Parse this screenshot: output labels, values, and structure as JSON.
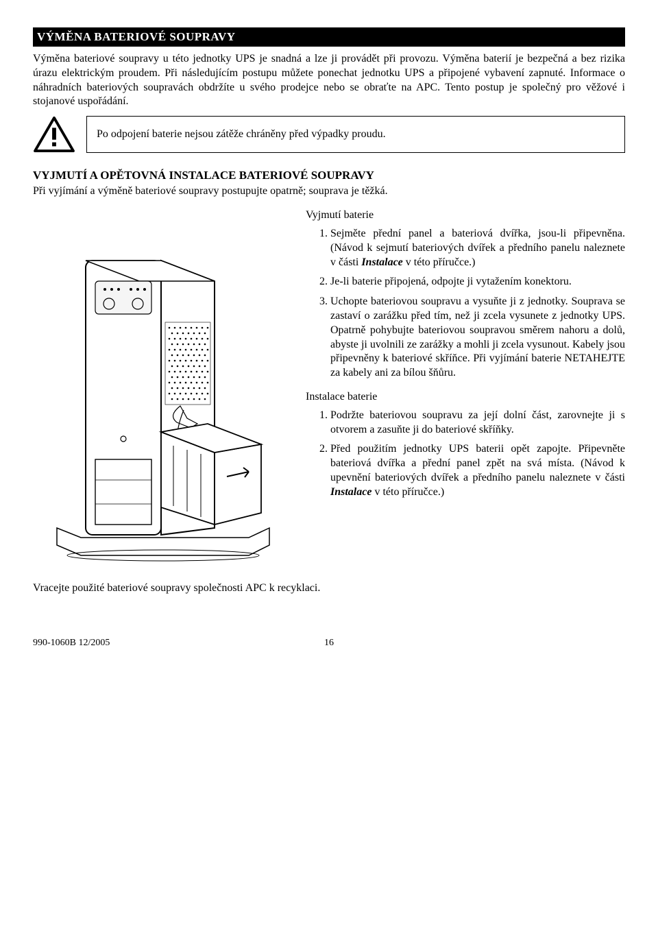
{
  "header": "VÝMĚNA BATERIOVÉ SOUPRAVY",
  "intro": "Výměna bateriové soupravy u této jednotky UPS je snadná a lze ji provádět při provozu. Výměna baterií je bezpečná a bez rizika úrazu elektrickým proudem. Při následujícím postupu můžete ponechat jednotku UPS a připojené vybavení zapnuté. Informace o náhradních bateriových soupravách obdržíte u svého prodejce nebo se obraťte na APC. Tento postup je společný pro věžové i stojanové uspořádání.",
  "warning": "Po odpojení baterie nejsou zátěže chráněny před výpadky proudu.",
  "subsection": "VYJMUTÍ A OPĚTOVNÁ INSTALACE BATERIOVÉ SOUPRAVY",
  "sub_intro": "Při vyjímání a výměně bateriové soupravy postupujte opatrně; souprava je těžká.",
  "removal_title": "Vyjmutí baterie",
  "removal": [
    "Sejměte přední panel a bateriová dvířka, jsou-li připevněna. (Návod k sejmutí bateriových dvířek a předního panelu naleznete v části <span class=\"italic\">Instalace</span> v této příručce.)",
    "Je-li baterie připojená, odpojte ji vytažením konektoru.",
    "Uchopte bateriovou soupravu a vysuňte ji z jednotky. Souprava se zastaví o zarážku před tím, než ji zcela vysunete z jednotky UPS. Opatrně pohybujte bateriovou soupravou směrem nahoru a dolů, abyste ji uvolnili ze zarážky a mohli ji zcela vysunout. Kabely jsou připevněny k bateriové skříňce. Při vyjímání baterie NETAHEJTE za kabely ani za bílou šňůru."
  ],
  "install_title": "Instalace baterie",
  "install": [
    "Podržte bateriovou soupravu za její dolní část, zarovnejte ji s otvorem a zasuňte ji do bateriové skříňky.",
    "Před použitím jednotky UPS baterii opět zapojte. Připevněte bateriová dvířka a přední panel zpět na svá místa. (Návod k upevnění bateriových dvířek a předního panelu naleznete v části <span class=\"italic\">Instalace</span> v této příručce.)"
  ],
  "recycle": "Vracejte použité bateriové soupravy společnosti APC k recyklaci.",
  "footer_left": "990-1060B  12/2005",
  "footer_center": "16"
}
